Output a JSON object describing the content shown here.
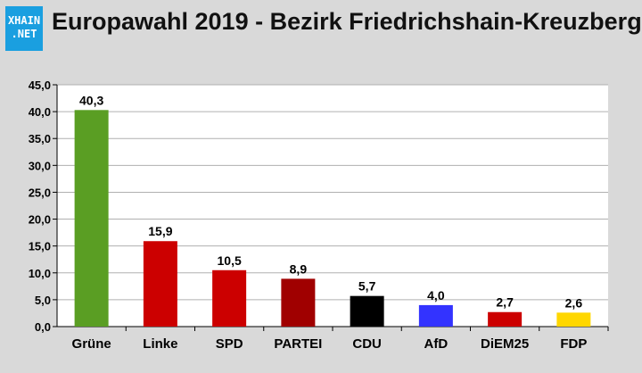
{
  "header": {
    "logo_line1": "XHAIN",
    "logo_line2": ".NET",
    "title": "Europawahl 2019 - Bezirk Friedrichshain-Kreuzberg"
  },
  "chart_data": {
    "type": "bar",
    "categories": [
      "Grüne",
      "Linke",
      "SPD",
      "PARTEI",
      "CDU",
      "AfD",
      "DiEM25",
      "FDP"
    ],
    "values": [
      40.3,
      15.9,
      10.5,
      8.9,
      5.7,
      4.0,
      2.7,
      2.6
    ],
    "value_labels": [
      "40,3",
      "15,9",
      "10,5",
      "8,9",
      "5,7",
      "4,0",
      "2,7",
      "2,6"
    ],
    "colors": [
      "#5a9e23",
      "#cc0000",
      "#cc0000",
      "#a00000",
      "#000000",
      "#3333ff",
      "#cc0000",
      "#ffd700"
    ],
    "ylim": [
      0,
      45
    ],
    "yticks": [
      0,
      5,
      10,
      15,
      20,
      25,
      30,
      35,
      40,
      45
    ],
    "ytick_labels": [
      "0,0",
      "5,0",
      "10,0",
      "15,0",
      "20,0",
      "25,0",
      "30,0",
      "35,0",
      "40,0",
      "45,0"
    ],
    "grid": true,
    "plot_background": "#ffffff",
    "grid_color": "#b0b0b0"
  }
}
